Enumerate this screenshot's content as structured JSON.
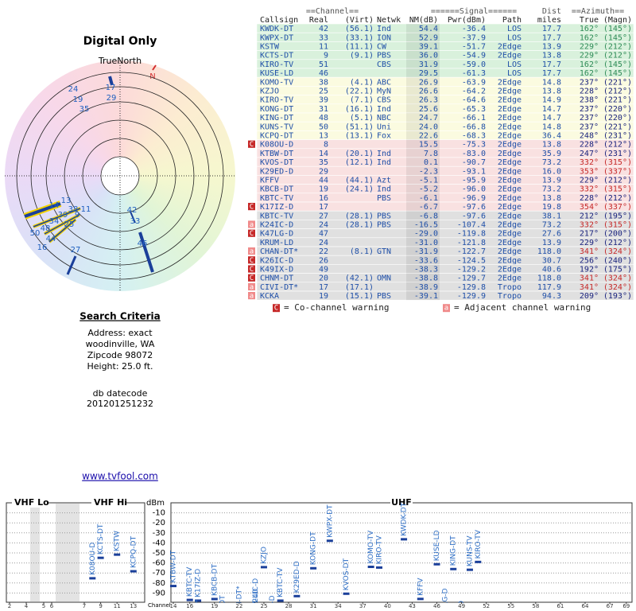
{
  "polar": {
    "title": "Digital Only",
    "north": "TrueNorth",
    "n_marker": "N",
    "labels": [
      "24",
      "17",
      "29",
      "19",
      "35",
      "14",
      "13",
      "38",
      "11",
      "39",
      "9",
      "34",
      "25",
      "50",
      "48",
      "44",
      "16",
      "27",
      "42",
      "33",
      "46"
    ]
  },
  "search": {
    "heading": "Search Criteria",
    "lines": [
      "Address: exact",
      "woodinville, WA",
      "Zipcode 98072",
      "Height: 25.0 ft."
    ],
    "datecode_label": "db datecode",
    "datecode": "201201251232",
    "link": "www.tvfool.com"
  },
  "table": {
    "groups": [
      "==Channel==",
      "======Signal======",
      "Dist",
      "==Azimuth=="
    ],
    "columns": [
      "Callsign",
      "Real",
      "(Virt)",
      "Netwk",
      "NM(dB)",
      "Pwr(dBm)",
      "Path",
      "miles",
      "True",
      "(Magn)"
    ],
    "rows": [
      {
        "callsign": "KWDK-DT",
        "real": 42,
        "virt": "(56.1)",
        "netwk": "Ind",
        "nm": 54.4,
        "pwr": -36.4,
        "path": "LOS",
        "dist": 17.7,
        "az_true": "162°",
        "az_magn": "(145°)",
        "bg": "#d9f1dc",
        "az_color": "#2e8b57"
      },
      {
        "callsign": "KWPX-DT",
        "real": 33,
        "virt": "(33.1)",
        "netwk": "ION",
        "nm": 52.9,
        "pwr": -37.9,
        "path": "LOS",
        "dist": 17.7,
        "az_true": "162°",
        "az_magn": "(145°)",
        "bg": "#d9f1dc",
        "az_color": "#2e8b57"
      },
      {
        "callsign": "KSTW",
        "real": 11,
        "virt": "(11.1)",
        "netwk": "CW",
        "nm": 39.1,
        "pwr": -51.7,
        "path": "2Edge",
        "dist": 13.9,
        "az_true": "229°",
        "az_magn": "(212°)",
        "bg": "#d9f1dc",
        "az_color": "#2e8b57"
      },
      {
        "callsign": "KCTS-DT",
        "real": 9,
        "virt": "(9.1)",
        "netwk": "PBS",
        "nm": 36.0,
        "pwr": -54.9,
        "path": "2Edge",
        "dist": 13.8,
        "az_true": "229°",
        "az_magn": "(212°)",
        "bg": "#d9f1dc",
        "az_color": "#2e8b57"
      },
      {
        "callsign": "KIRO-TV",
        "real": 51,
        "netwk": "CBS",
        "nm": 31.9,
        "pwr": -59.0,
        "path": "LOS",
        "dist": 17.7,
        "az_true": "162°",
        "az_magn": "(145°)",
        "bg": "#d9f1dc",
        "az_color": "#2e8b57"
      },
      {
        "callsign": "KUSE-LD",
        "real": 46,
        "nm": 29.5,
        "pwr": -61.3,
        "path": "LOS",
        "dist": 17.7,
        "az_true": "162°",
        "az_magn": "(145°)",
        "bg": "#d9f1dc",
        "az_color": "#2e8b57"
      },
      {
        "callsign": "KOMO-TV",
        "real": 38,
        "virt": "(4.1)",
        "netwk": "ABC",
        "nm": 26.9,
        "pwr": -63.9,
        "path": "2Edge",
        "dist": 14.8,
        "az_true": "237°",
        "az_magn": "(221°)",
        "bg": "#fbfbe0",
        "az_color": "#1a237e"
      },
      {
        "callsign": "KZJO",
        "real": 25,
        "virt": "(22.1)",
        "netwk": "MyN",
        "nm": 26.6,
        "pwr": -64.2,
        "path": "2Edge",
        "dist": 13.8,
        "az_true": "228°",
        "az_magn": "(212°)",
        "bg": "#fbfbe0",
        "az_color": "#1a237e"
      },
      {
        "callsign": "KIRO-TV",
        "real": 39,
        "virt": "(7.1)",
        "netwk": "CBS",
        "nm": 26.3,
        "pwr": -64.6,
        "path": "2Edge",
        "dist": 14.9,
        "az_true": "238°",
        "az_magn": "(221°)",
        "bg": "#fbfbe0",
        "az_color": "#1a237e"
      },
      {
        "callsign": "KONG-DT",
        "real": 31,
        "virt": "(16.1)",
        "netwk": "Ind",
        "nm": 25.6,
        "pwr": -65.3,
        "path": "2Edge",
        "dist": 14.7,
        "az_true": "237°",
        "az_magn": "(220°)",
        "bg": "#fbfbe0",
        "az_color": "#1a237e"
      },
      {
        "callsign": "KING-DT",
        "real": 48,
        "virt": "(5.1)",
        "netwk": "NBC",
        "nm": 24.7,
        "pwr": -66.1,
        "path": "2Edge",
        "dist": 14.7,
        "az_true": "237°",
        "az_magn": "(220°)",
        "bg": "#fbfbe0",
        "az_color": "#1a237e"
      },
      {
        "callsign": "KUNS-TV",
        "real": 50,
        "virt": "(51.1)",
        "netwk": "Uni",
        "nm": 24.0,
        "pwr": -66.8,
        "path": "2Edge",
        "dist": 14.8,
        "az_true": "237°",
        "az_magn": "(221°)",
        "bg": "#fbfbe0",
        "az_color": "#1a237e"
      },
      {
        "callsign": "KCPQ-DT",
        "real": 13,
        "virt": "(13.1)",
        "netwk": "Fox",
        "nm": 22.6,
        "pwr": -68.3,
        "path": "2Edge",
        "dist": 36.4,
        "az_true": "248°",
        "az_magn": "(231°)",
        "bg": "#fbfbe0",
        "az_color": "#1a237e"
      },
      {
        "callsign": "K08OU-D",
        "real": 8,
        "nm": 15.5,
        "pwr": -75.3,
        "path": "2Edge",
        "dist": 13.8,
        "az_true": "228°",
        "az_magn": "(212°)",
        "bg": "#f9e1e1",
        "az_color": "#1a237e",
        "warn": "C"
      },
      {
        "callsign": "KTBW-DT",
        "real": 14,
        "virt": "(20.1)",
        "netwk": "Ind",
        "nm": 7.8,
        "pwr": -83.0,
        "path": "2Edge",
        "dist": 35.9,
        "az_true": "247°",
        "az_magn": "(231°)",
        "bg": "#f9e1e1",
        "az_color": "#1a237e"
      },
      {
        "callsign": "KVOS-DT",
        "real": 35,
        "virt": "(12.1)",
        "netwk": "Ind",
        "nm": 0.1,
        "pwr": -90.7,
        "path": "2Edge",
        "dist": 73.2,
        "az_true": "332°",
        "az_magn": "(315°)",
        "bg": "#f9e1e1",
        "az_color": "#c62828"
      },
      {
        "callsign": "K29ED-D",
        "real": 29,
        "nm": -2.3,
        "pwr": -93.1,
        "path": "2Edge",
        "dist": 16.0,
        "az_true": "353°",
        "az_magn": "(337°)",
        "bg": "#f9e1e1",
        "az_color": "#c62828"
      },
      {
        "callsign": "KFFV",
        "real": 44,
        "virt": "(44.1)",
        "netwk": "Azt",
        "nm": -5.1,
        "pwr": -95.9,
        "path": "2Edge",
        "dist": 13.9,
        "az_true": "229°",
        "az_magn": "(212°)",
        "bg": "#f9e1e1",
        "az_color": "#1a237e"
      },
      {
        "callsign": "KBCB-DT",
        "real": 19,
        "virt": "(24.1)",
        "netwk": "Ind",
        "nm": -5.2,
        "pwr": -96.0,
        "path": "2Edge",
        "dist": 73.2,
        "az_true": "332°",
        "az_magn": "(315°)",
        "bg": "#f9e1e1",
        "az_color": "#c62828"
      },
      {
        "callsign": "KBTC-TV",
        "real": 16,
        "netwk": "PBS",
        "nm": -6.1,
        "pwr": -96.9,
        "path": "2Edge",
        "dist": 13.8,
        "az_true": "228°",
        "az_magn": "(212°)",
        "bg": "#f9e1e1",
        "az_color": "#1a237e"
      },
      {
        "callsign": "K17IZ-D",
        "real": 17,
        "nm": -6.7,
        "pwr": -97.6,
        "path": "2Edge",
        "dist": 19.8,
        "az_true": "354°",
        "az_magn": "(337°)",
        "bg": "#f9e1e1",
        "az_color": "#c62828",
        "warn": "C"
      },
      {
        "callsign": "KBTC-TV",
        "real": 27,
        "virt": "(28.1)",
        "netwk": "PBS",
        "nm": -6.8,
        "pwr": -97.6,
        "path": "2Edge",
        "dist": 38.1,
        "az_true": "212°",
        "az_magn": "(195°)",
        "bg": "#e0e0e0",
        "az_color": "#1a237e"
      },
      {
        "callsign": "K24IC-D",
        "real": 24,
        "virt": "(28.1)",
        "netwk": "PBS",
        "nm": -16.5,
        "pwr": -107.4,
        "path": "2Edge",
        "dist": 73.2,
        "az_true": "332°",
        "az_magn": "(315°)",
        "bg": "#e0e0e0",
        "az_color": "#c62828",
        "warn": "a"
      },
      {
        "callsign": "K47LG-D",
        "real": 47,
        "nm": -29.0,
        "pwr": -119.8,
        "path": "2Edge",
        "dist": 27.6,
        "az_true": "217°",
        "az_magn": "(200°)",
        "bg": "#e0e0e0",
        "az_color": "#1a237e",
        "warn": "C"
      },
      {
        "callsign": "KRUM-LD",
        "real": 24,
        "nm": -31.0,
        "pwr": -121.8,
        "path": "2Edge",
        "dist": 13.9,
        "az_true": "229°",
        "az_magn": "(212°)",
        "bg": "#e0e0e0",
        "az_color": "#1a237e"
      },
      {
        "callsign": "CHAN-DT*",
        "real": 22,
        "virt": "(8.1)",
        "netwk": "GTN",
        "nm": -31.9,
        "pwr": -122.7,
        "path": "2Edge",
        "dist": 118.0,
        "az_true": "341°",
        "az_magn": "(324°)",
        "bg": "#e0e0e0",
        "az_color": "#c62828",
        "warn": "a"
      },
      {
        "callsign": "K26IC-D",
        "real": 26,
        "nm": -33.6,
        "pwr": -124.5,
        "path": "2Edge",
        "dist": 30.7,
        "az_true": "256°",
        "az_magn": "(240°)",
        "bg": "#e0e0e0",
        "az_color": "#1a237e",
        "warn": "C"
      },
      {
        "callsign": "K49IX-D",
        "real": 49,
        "nm": -38.3,
        "pwr": -129.2,
        "path": "2Edge",
        "dist": 40.6,
        "az_true": "192°",
        "az_magn": "(175°)",
        "bg": "#e0e0e0",
        "az_color": "#1a237e",
        "warn": "C"
      },
      {
        "callsign": "CHNM-DT",
        "real": 20,
        "virt": "(42.1)",
        "netwk": "OMN",
        "nm": -38.8,
        "pwr": -129.7,
        "path": "2Edge",
        "dist": 118.0,
        "az_true": "341°",
        "az_magn": "(324°)",
        "bg": "#e0e0e0",
        "az_color": "#c62828",
        "warn": "C"
      },
      {
        "callsign": "CIVI-DT*",
        "real": 17,
        "virt": "(17.1)",
        "nm": -38.9,
        "pwr": -129.8,
        "path": "Tropo",
        "dist": 117.9,
        "az_true": "341°",
        "az_magn": "(324°)",
        "bg": "#e0e0e0",
        "az_color": "#c62828",
        "warn": "a"
      },
      {
        "callsign": "KCKA",
        "real": 19,
        "virt": "(15.1)",
        "netwk": "PBS",
        "nm": -39.1,
        "pwr": -129.9,
        "path": "Tropo",
        "dist": 94.3,
        "az_true": "209°",
        "az_magn": "(193°)",
        "bg": "#e0e0e0",
        "az_color": "#1a237e",
        "warn": "a"
      }
    ],
    "legend": [
      {
        "icon": "C",
        "text": "= Co-channel warning",
        "color": "#c62828"
      },
      {
        "icon": "a",
        "text": "= Adjacent channel warning",
        "color": "#f08a8a"
      }
    ]
  },
  "chart_data": {
    "type": "bar",
    "bands": [
      "VHF Lo",
      "VHF Hi",
      "UHF"
    ],
    "ylabel": "dBm",
    "xlabel": "Channel",
    "ylim": [
      -100,
      0
    ],
    "yticks": [
      -10,
      -20,
      -30,
      -40,
      -50,
      -60,
      -70,
      -80,
      -90
    ],
    "xticks": [
      2,
      4,
      5,
      6,
      7,
      9,
      11,
      13,
      14,
      16,
      19,
      22,
      25,
      28,
      31,
      34,
      37,
      40,
      43,
      46,
      49,
      52,
      55,
      58,
      61,
      64,
      67,
      69
    ],
    "color": "#1a3f9a",
    "label_color": "#2b6cc4",
    "grid": true
  }
}
